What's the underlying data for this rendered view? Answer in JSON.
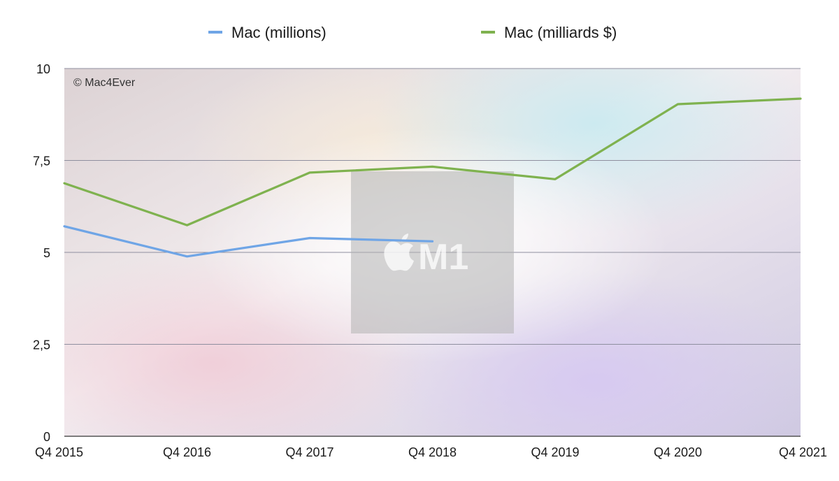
{
  "chart_data": {
    "type": "line",
    "categories": [
      "Q4 2015",
      "Q4 2016",
      "Q4 2017",
      "Q4 2018",
      "Q4 2019",
      "Q4 2020",
      "Q4 2021"
    ],
    "series": [
      {
        "name": "Mac (millions)",
        "color": "#6fa5e6",
        "values": [
          5.71,
          4.89,
          5.39,
          5.3,
          null,
          null,
          null
        ]
      },
      {
        "name": "Mac (milliards $)",
        "color": "#7fb24f",
        "values": [
          6.88,
          5.74,
          7.17,
          7.33,
          6.99,
          9.03,
          9.18
        ]
      }
    ],
    "yticks": [
      "0",
      "2,5",
      "5",
      "7,5",
      "10"
    ],
    "ylim": [
      0,
      10
    ],
    "grid": true,
    "legend_position": "top",
    "watermark": "© Mac4Ever",
    "logo_text": "M1"
  }
}
